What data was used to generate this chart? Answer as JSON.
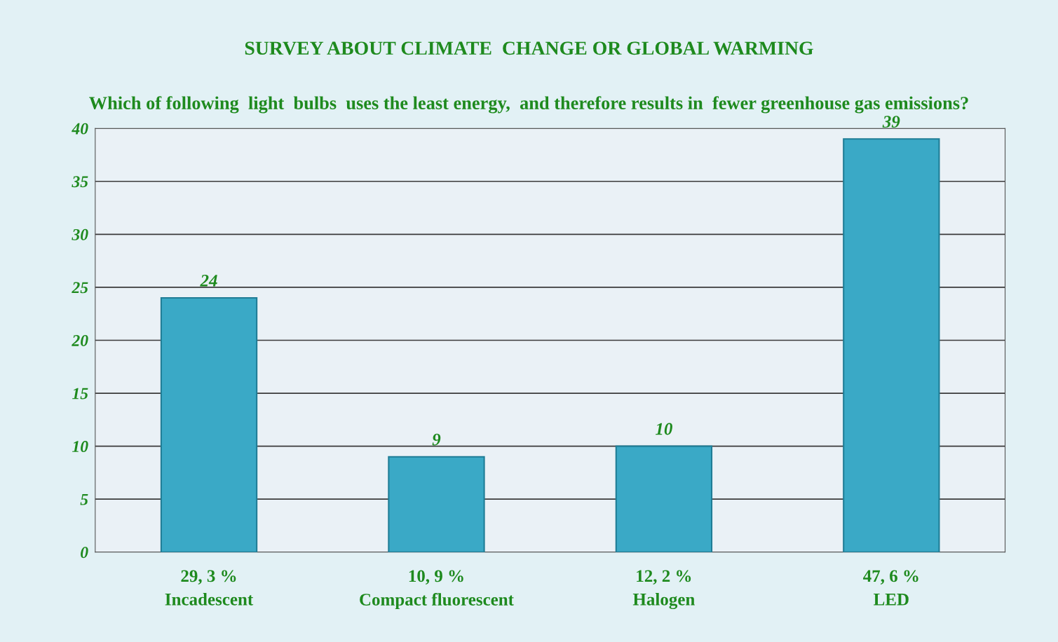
{
  "chart_data": {
    "type": "bar",
    "title": "SURVEY ABOUT CLIMATE  CHANGE OR GLOBAL WARMING",
    "subtitle": "Which of following  light  bulbs  uses the least energy,  and therefore results in  fewer greenhouse gas emissions?",
    "categories": [
      "Incadescent",
      "Compact fluorescent",
      "Halogen",
      "LED"
    ],
    "values": [
      24,
      9,
      10,
      39
    ],
    "color": "#3aa9c6",
    "data_labels": true,
    "annotations": [
      "29, 3 %",
      "10, 9 %",
      "12, 2 %",
      "47, 6 %"
    ],
    "ylim": [
      0,
      40
    ],
    "yticks": [
      0,
      5,
      10,
      15,
      20,
      25,
      30,
      35,
      40
    ],
    "grid": "y"
  }
}
